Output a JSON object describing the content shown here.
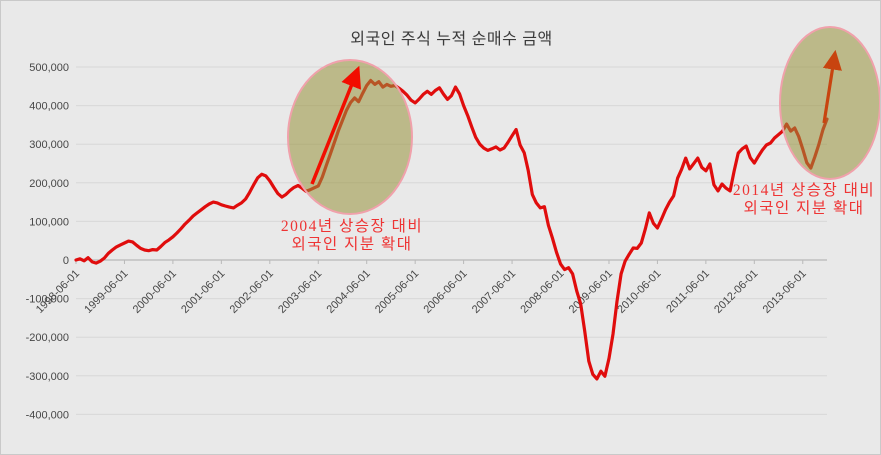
{
  "chart_data": {
    "type": "line",
    "title": "외국인 주식 누적 순매수 금액",
    "x_start": "1998-06",
    "x_interval": "monthly",
    "x_tick_labels": [
      "1998-06-01",
      "1999-06-01",
      "2000-06-01",
      "2001-06-01",
      "2002-06-01",
      "2003-06-01",
      "2004-06-01",
      "2005-06-01",
      "2006-06-01",
      "2007-06-01",
      "2008-06-01",
      "2009-06-01",
      "2010-06-01",
      "2011-06-01",
      "2012-06-01",
      "2013-06-01"
    ],
    "y_tick_labels": [
      "500,000",
      "400,000",
      "300,000",
      "200,000",
      "100,000",
      "0",
      "-100,000",
      "-200,000",
      "-300,000",
      "-400,000"
    ],
    "y_ticks": [
      500000,
      400000,
      300000,
      200000,
      100000,
      0,
      -100000,
      -200000,
      -300000,
      -400000
    ],
    "ylim": [
      -400000,
      500000
    ],
    "grid": true,
    "legend": "none",
    "values": [
      0,
      3000,
      -2000,
      6000,
      -5000,
      -8000,
      -3000,
      5000,
      17000,
      26000,
      34000,
      39000,
      44000,
      49000,
      47000,
      38000,
      30000,
      26000,
      24000,
      27000,
      26000,
      35000,
      45000,
      52000,
      60000,
      70000,
      81000,
      93000,
      103000,
      114000,
      122000,
      130000,
      138000,
      145000,
      150000,
      148000,
      143000,
      140000,
      137000,
      135000,
      142000,
      148000,
      158000,
      175000,
      195000,
      213000,
      222000,
      218000,
      205000,
      188000,
      172000,
      163000,
      170000,
      180000,
      188000,
      193000,
      186000,
      178000,
      182000,
      187000,
      192000,
      215000,
      245000,
      275000,
      305000,
      335000,
      362000,
      388000,
      408000,
      420000,
      410000,
      432000,
      452000,
      465000,
      455000,
      462000,
      448000,
      455000,
      450000,
      452000,
      445000,
      437000,
      427000,
      414000,
      407000,
      417000,
      429000,
      437000,
      429000,
      439000,
      446000,
      430000,
      416000,
      426000,
      448000,
      430000,
      400000,
      374000,
      345000,
      318000,
      300000,
      290000,
      284000,
      288000,
      293000,
      285000,
      290000,
      305000,
      322000,
      338000,
      298000,
      278000,
      232000,
      170000,
      148000,
      135000,
      138000,
      90000,
      57000,
      20000,
      -10000,
      -25000,
      -20000,
      -36000,
      -80000,
      -114000,
      -184000,
      -262000,
      -296000,
      -308000,
      -288000,
      -301000,
      -255000,
      -192000,
      -107000,
      -36000,
      -3000,
      15000,
      31000,
      30000,
      44000,
      80000,
      122000,
      95000,
      83000,
      106000,
      130000,
      150000,
      166000,
      212000,
      235000,
      264000,
      236000,
      250000,
      264000,
      240000,
      231000,
      249000,
      195000,
      179000,
      197000,
      186000,
      179000,
      230000,
      277000,
      288000,
      295000,
      265000,
      251000,
      269000,
      285000,
      298000,
      303000,
      316000,
      325000,
      334000,
      352000,
      334000,
      342000,
      320000,
      287000,
      252000,
      238000,
      268000,
      300000,
      338000,
      365000
    ],
    "annotations": [
      {
        "line1": "2004년 상승장 대비",
        "line2": "외국인 지분 확대"
      },
      {
        "line1": "2014년 상승장 대비",
        "line2": "외국인 지분 확대"
      }
    ],
    "style": {
      "line_color": "#e00d0d",
      "annotation_text_color": "#ee3434",
      "highlight_fill": "rgba(152,146,58,0.55)",
      "highlight_border": "#f0a1ab",
      "arrow_color_1": "#f20d00",
      "arrow_color_2": "#c8440f",
      "background": "#e9e9e9",
      "grid_color": "#d8d8d8",
      "axis_color": "#b9b9b9"
    }
  }
}
